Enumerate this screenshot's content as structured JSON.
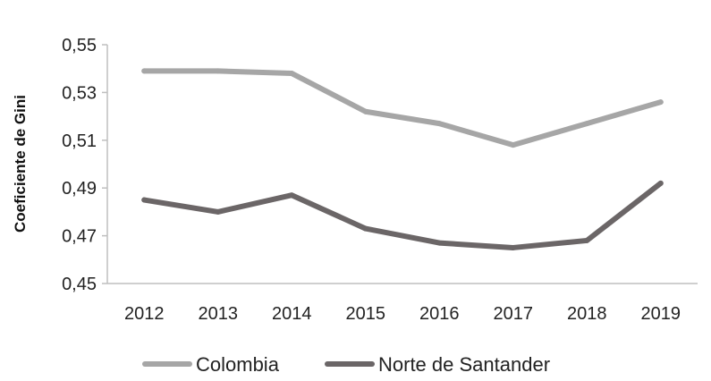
{
  "chart_data": {
    "type": "line",
    "title": "",
    "xlabel": "",
    "ylabel": "Coeficiente de Gini",
    "categories": [
      "2012",
      "2013",
      "2014",
      "2015",
      "2016",
      "2017",
      "2018",
      "2019"
    ],
    "ylim": [
      0.45,
      0.55
    ],
    "yticks": [
      0.45,
      0.47,
      0.49,
      0.51,
      0.53,
      0.55
    ],
    "ytick_labels": [
      "0,45",
      "0,47",
      "0,49",
      "0,51",
      "0,53",
      "0,55"
    ],
    "grid": false,
    "legend_position": "bottom",
    "series": [
      {
        "name": "Colombia",
        "color": "#a6a6a6",
        "values": [
          0.539,
          0.539,
          0.538,
          0.522,
          0.517,
          0.508,
          0.517,
          0.526
        ]
      },
      {
        "name": "Norte de Santander",
        "color": "#6b6667",
        "values": [
          0.485,
          0.48,
          0.487,
          0.473,
          0.467,
          0.465,
          0.468,
          0.492
        ]
      }
    ]
  }
}
